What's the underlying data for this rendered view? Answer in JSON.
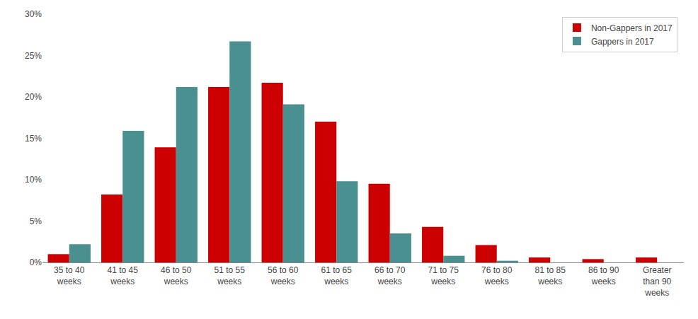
{
  "chart_data": {
    "type": "bar",
    "categories": [
      "35 to 40\nweeks",
      "41 to 45\nweeks",
      "46 to 50\nweeks",
      "51 to 55\nweeks",
      "56 to 60\nweeks",
      "61 to 65\nweeks",
      "66 to 70\nweeks",
      "71 to 75\nweeks",
      "76 to 80\nweeks",
      "81 to 85\nweeks",
      "86 to 90\nweeks",
      "Greater\nthan 90\nweeks"
    ],
    "series": [
      {
        "name": "Non-Gappers in 2017",
        "color": "#CC0000",
        "values": [
          0.01,
          0.082,
          0.139,
          0.212,
          0.217,
          0.17,
          0.095,
          0.043,
          0.021,
          0.006,
          0.004,
          0.006
        ]
      },
      {
        "name": "Gappers in 2017",
        "color": "#4A9090",
        "values": [
          0.022,
          0.159,
          0.212,
          0.267,
          0.191,
          0.098,
          0.035,
          0.008,
          0.002,
          0.0,
          0.0,
          0.0
        ]
      }
    ],
    "ylim": [
      0,
      0.3
    ],
    "yticks": [
      {
        "value": 0.0,
        "label": "0%"
      },
      {
        "value": 0.05,
        "label": "5%"
      },
      {
        "value": 0.1,
        "label": "10%"
      },
      {
        "value": 0.15,
        "label": "15%"
      },
      {
        "value": 0.2,
        "label": "20%"
      },
      {
        "value": 0.25,
        "label": "25%"
      },
      {
        "value": 0.3,
        "label": "30%"
      }
    ],
    "grid": false,
    "legend": "upper right"
  }
}
